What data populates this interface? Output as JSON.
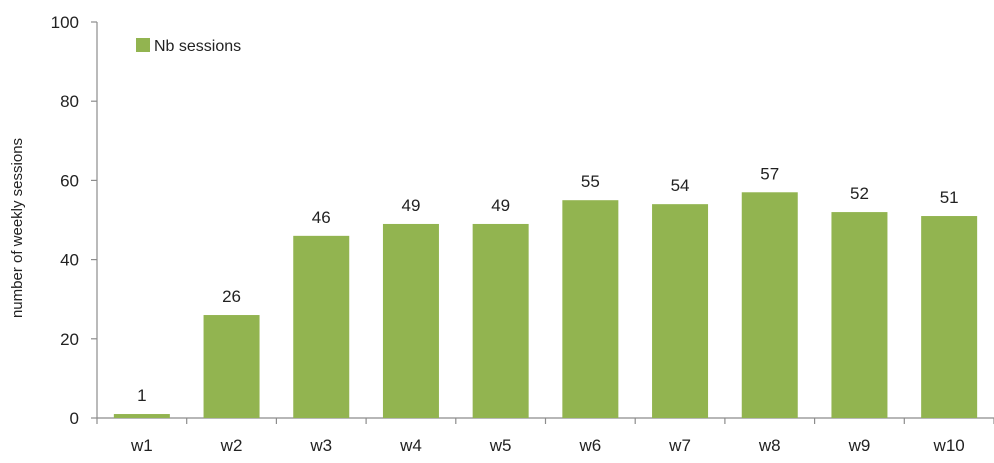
{
  "chart_data": {
    "type": "bar",
    "title": "",
    "xlabel": "",
    "ylabel": "number of weekly sessions",
    "categories": [
      "w1",
      "w2",
      "w3",
      "w4",
      "w5",
      "w6",
      "w7",
      "w8",
      "w9",
      "w10"
    ],
    "series": [
      {
        "name": "Nb sessions",
        "values": [
          1,
          26,
          46,
          49,
          49,
          55,
          54,
          57,
          52,
          51
        ],
        "color": "#92b450"
      }
    ],
    "ylim": [
      0,
      100
    ],
    "yticks": [
      0,
      20,
      40,
      60,
      80,
      100
    ],
    "grid": false,
    "legend_position": "top-left",
    "data_labels": true
  }
}
